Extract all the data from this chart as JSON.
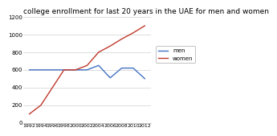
{
  "title": "college enrollment for last 20 years in the UAE for men and women",
  "years": [
    1992,
    1994,
    1996,
    1998,
    2000,
    2002,
    2004,
    2006,
    2008,
    2010,
    2012
  ],
  "men": [
    600,
    600,
    600,
    600,
    600,
    600,
    650,
    510,
    620,
    620,
    500
  ],
  "women": [
    100,
    200,
    400,
    600,
    600,
    650,
    800,
    870,
    950,
    1020,
    1100
  ],
  "men_color": "#4472c4",
  "women_color": "#c0392b",
  "ylim": [
    0,
    1200
  ],
  "yticks": [
    0,
    200,
    400,
    600,
    800,
    1000,
    1200
  ],
  "legend_labels": [
    "men",
    "women"
  ],
  "bg_color": "#ffffff",
  "grid_color": "#d0d0d0",
  "title_fontsize": 6.5
}
